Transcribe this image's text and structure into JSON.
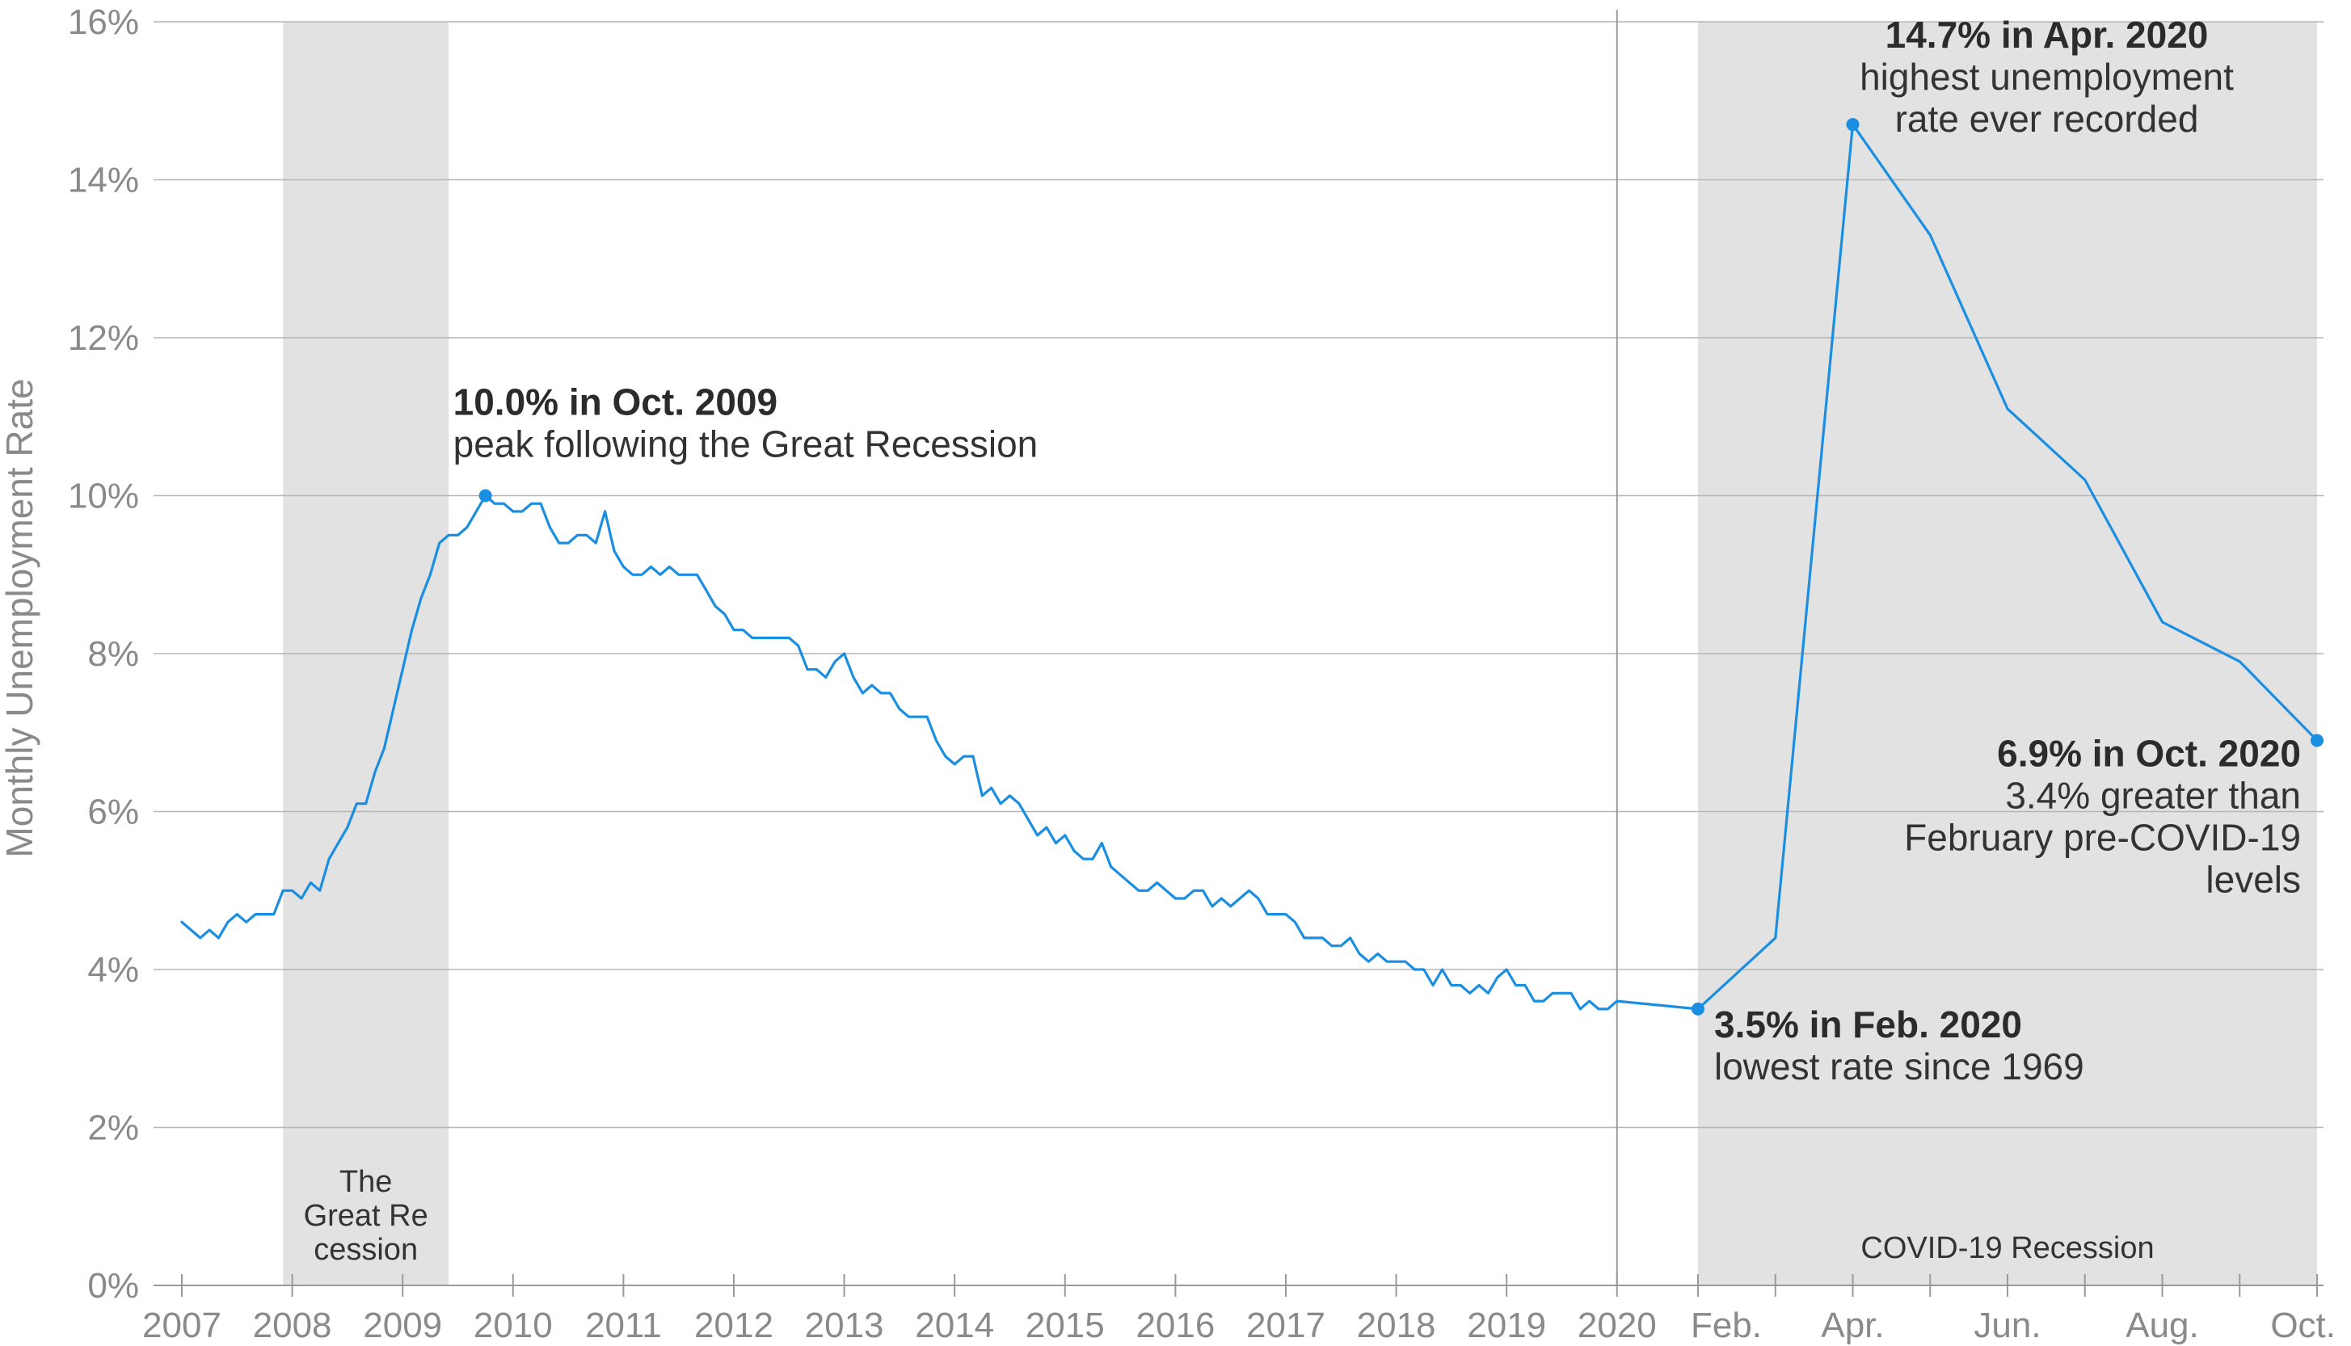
{
  "chart_data": {
    "type": "line",
    "title": "",
    "ylabel": "Monthly Unemployment Rate",
    "xlabel": "",
    "ylim": [
      0,
      16
    ],
    "y_ticks": [
      "0%",
      "2%",
      "4%",
      "6%",
      "8%",
      "10%",
      "12%",
      "14%",
      "16%"
    ],
    "y_tick_values": [
      0,
      2,
      4,
      6,
      8,
      10,
      12,
      14,
      16
    ],
    "grid": true,
    "x_tick_labels_years": [
      "2007",
      "2008",
      "2009",
      "2010",
      "2011",
      "2012",
      "2013",
      "2014",
      "2015",
      "2016",
      "2017",
      "2018",
      "2019",
      "2020"
    ],
    "x_tick_labels_2020": [
      "Feb.",
      "Apr.",
      "Jun.",
      "Aug.",
      "Oct."
    ],
    "recession_bands": [
      {
        "label_lines": [
          "The",
          "Great Re",
          "cession"
        ],
        "start": "2007-12",
        "end": "2009-06"
      },
      {
        "label_lines": [
          "COVID-19 Recession"
        ],
        "start": "2020-02",
        "end": "2020-10"
      }
    ],
    "color": "#1a8ee0",
    "series": [
      {
        "start": "2007-01",
        "x": [
          "2007-01",
          "2007-02",
          "2007-03",
          "2007-04",
          "2007-05",
          "2007-06",
          "2007-07",
          "2007-08",
          "2007-09",
          "2007-10",
          "2007-11",
          "2007-12",
          "2008-01",
          "2008-02",
          "2008-03",
          "2008-04",
          "2008-05",
          "2008-06",
          "2008-07",
          "2008-08",
          "2008-09",
          "2008-10",
          "2008-11",
          "2008-12",
          "2009-01",
          "2009-02",
          "2009-03",
          "2009-04",
          "2009-05",
          "2009-06",
          "2009-07",
          "2009-08",
          "2009-09",
          "2009-10",
          "2009-11",
          "2009-12",
          "2010-01",
          "2010-02",
          "2010-03",
          "2010-04",
          "2010-05",
          "2010-06",
          "2010-07",
          "2010-08",
          "2010-09",
          "2010-10",
          "2010-11",
          "2010-12",
          "2011-01",
          "2011-02",
          "2011-03",
          "2011-04",
          "2011-05",
          "2011-06",
          "2011-07",
          "2011-08",
          "2011-09",
          "2011-10",
          "2011-11",
          "2011-12",
          "2012-01",
          "2012-02",
          "2012-03",
          "2012-04",
          "2012-05",
          "2012-06",
          "2012-07",
          "2012-08",
          "2012-09",
          "2012-10",
          "2012-11",
          "2012-12",
          "2013-01",
          "2013-02",
          "2013-03",
          "2013-04",
          "2013-05",
          "2013-06",
          "2013-07",
          "2013-08",
          "2013-09",
          "2013-10",
          "2013-11",
          "2013-12",
          "2014-01",
          "2014-02",
          "2014-03",
          "2014-04",
          "2014-05",
          "2014-06",
          "2014-07",
          "2014-08",
          "2014-09",
          "2014-10",
          "2014-11",
          "2014-12",
          "2015-01",
          "2015-02",
          "2015-03",
          "2015-04",
          "2015-05",
          "2015-06",
          "2015-07",
          "2015-08",
          "2015-09",
          "2015-10",
          "2015-11",
          "2015-12",
          "2016-01",
          "2016-02",
          "2016-03",
          "2016-04",
          "2016-05",
          "2016-06",
          "2016-07",
          "2016-08",
          "2016-09",
          "2016-10",
          "2016-11",
          "2016-12",
          "2017-01",
          "2017-02",
          "2017-03",
          "2017-04",
          "2017-05",
          "2017-06",
          "2017-07",
          "2017-08",
          "2017-09",
          "2017-10",
          "2017-11",
          "2017-12",
          "2018-01",
          "2018-02",
          "2018-03",
          "2018-04",
          "2018-05",
          "2018-06",
          "2018-07",
          "2018-08",
          "2018-09",
          "2018-10",
          "2018-11",
          "2018-12",
          "2019-01",
          "2019-02",
          "2019-03",
          "2019-04",
          "2019-05",
          "2019-06",
          "2019-07",
          "2019-08",
          "2019-09",
          "2019-10",
          "2019-11",
          "2019-12",
          "2020-01",
          "2020-02",
          "2020-03",
          "2020-04",
          "2020-05",
          "2020-06",
          "2020-07",
          "2020-08",
          "2020-09",
          "2020-10"
        ],
        "values": [
          4.6,
          4.5,
          4.4,
          4.5,
          4.4,
          4.6,
          4.7,
          4.6,
          4.7,
          4.7,
          4.7,
          5.0,
          5.0,
          4.9,
          5.1,
          5.0,
          5.4,
          5.6,
          5.8,
          6.1,
          6.1,
          6.5,
          6.8,
          7.3,
          7.8,
          8.3,
          8.7,
          9.0,
          9.4,
          9.5,
          9.5,
          9.6,
          9.8,
          10.0,
          9.9,
          9.9,
          9.8,
          9.8,
          9.9,
          9.9,
          9.6,
          9.4,
          9.4,
          9.5,
          9.5,
          9.4,
          9.8,
          9.3,
          9.1,
          9.0,
          9.0,
          9.1,
          9.0,
          9.1,
          9.0,
          9.0,
          9.0,
          8.8,
          8.6,
          8.5,
          8.3,
          8.3,
          8.2,
          8.2,
          8.2,
          8.2,
          8.2,
          8.1,
          7.8,
          7.8,
          7.7,
          7.9,
          8.0,
          7.7,
          7.5,
          7.6,
          7.5,
          7.5,
          7.3,
          7.2,
          7.2,
          7.2,
          6.9,
          6.7,
          6.6,
          6.7,
          6.7,
          6.2,
          6.3,
          6.1,
          6.2,
          6.1,
          5.9,
          5.7,
          5.8,
          5.6,
          5.7,
          5.5,
          5.4,
          5.4,
          5.6,
          5.3,
          5.2,
          5.1,
          5.0,
          5.0,
          5.1,
          5.0,
          4.9,
          4.9,
          5.0,
          5.0,
          4.8,
          4.9,
          4.8,
          4.9,
          5.0,
          4.9,
          4.7,
          4.7,
          4.7,
          4.6,
          4.4,
          4.4,
          4.4,
          4.3,
          4.3,
          4.4,
          4.2,
          4.1,
          4.2,
          4.1,
          4.1,
          4.1,
          4.0,
          4.0,
          3.8,
          4.0,
          3.8,
          3.8,
          3.7,
          3.8,
          3.7,
          3.9,
          4.0,
          3.8,
          3.8,
          3.6,
          3.6,
          3.7,
          3.7,
          3.7,
          3.5,
          3.6,
          3.5,
          3.5,
          3.6,
          3.5,
          4.4,
          14.7,
          13.3,
          11.1,
          10.2,
          8.4,
          7.9,
          6.9
        ]
      }
    ],
    "annotations": [
      {
        "bold": "10.0% in Oct. 2009",
        "lines": [
          "peak following the Great Recession"
        ],
        "x": "2009-10",
        "y": 10.0
      },
      {
        "bold": "14.7% in Apr. 2020",
        "lines": [
          "highest unemployment",
          "rate ever recorded"
        ],
        "x": "2020-04",
        "y": 14.7
      },
      {
        "bold": "3.5% in Feb. 2020",
        "lines": [
          "lowest rate since 1969"
        ],
        "x": "2020-02",
        "y": 3.5
      },
      {
        "bold": "6.9% in Oct. 2020",
        "lines": [
          "3.4% greater than",
          "February pre-COVID-19",
          "levels"
        ],
        "x": "2020-10",
        "y": 6.9
      }
    ]
  }
}
